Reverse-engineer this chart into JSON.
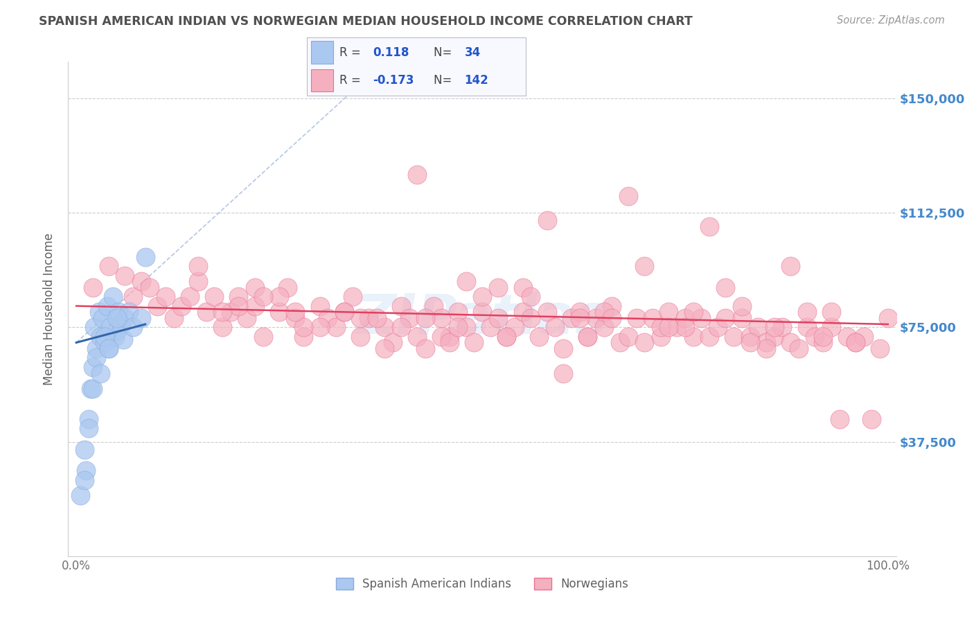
{
  "title": "SPANISH AMERICAN INDIAN VS NORWEGIAN MEDIAN HOUSEHOLD INCOME CORRELATION CHART",
  "source": "Source: ZipAtlas.com",
  "ylabel": "Median Household Income",
  "yticks": [
    0,
    37500,
    75000,
    112500,
    150000
  ],
  "ytick_labels": [
    "",
    "$37,500",
    "$75,000",
    "$112,500",
    "$150,000"
  ],
  "ymin": 0,
  "ymax": 162000,
  "xmin": -1,
  "xmax": 101,
  "blue_color": "#aac8f0",
  "pink_color": "#f5b0c0",
  "blue_edge": "#88aadd",
  "pink_edge": "#e87090",
  "trend_blue_color": "#3366aa",
  "trend_pink_color": "#e04060",
  "dashed_color": "#aac0e0",
  "watermark": "ZIPatlas",
  "background_color": "#ffffff",
  "title_color": "#505050",
  "axis_label_color": "#606060",
  "ytick_color": "#4488cc",
  "xtick_color": "#707070",
  "legend_box_color": "#ddddff",
  "blue_scatter_x": [
    0.5,
    1.0,
    1.2,
    1.5,
    1.8,
    2.0,
    2.2,
    2.5,
    2.8,
    3.0,
    3.2,
    3.5,
    3.8,
    4.0,
    4.2,
    4.5,
    4.8,
    5.0,
    5.2,
    5.5,
    5.8,
    6.0,
    6.5,
    7.0,
    8.0,
    1.0,
    1.5,
    2.0,
    2.5,
    3.0,
    3.5,
    4.0,
    5.0,
    8.5
  ],
  "blue_scatter_y": [
    20000,
    35000,
    28000,
    45000,
    55000,
    62000,
    75000,
    68000,
    80000,
    72000,
    78000,
    70000,
    82000,
    68000,
    75000,
    85000,
    72000,
    74000,
    80000,
    76000,
    71000,
    78000,
    80000,
    75000,
    78000,
    25000,
    42000,
    55000,
    65000,
    60000,
    72000,
    68000,
    78000,
    98000
  ],
  "pink_scatter_x": [
    2,
    4,
    6,
    7,
    8,
    9,
    10,
    11,
    12,
    13,
    14,
    15,
    16,
    17,
    18,
    19,
    20,
    21,
    22,
    23,
    25,
    26,
    27,
    28,
    30,
    31,
    32,
    33,
    34,
    35,
    36,
    38,
    39,
    40,
    41,
    42,
    43,
    44,
    45,
    46,
    47,
    48,
    49,
    50,
    51,
    52,
    53,
    54,
    55,
    56,
    57,
    58,
    59,
    60,
    61,
    62,
    63,
    64,
    65,
    66,
    67,
    68,
    69,
    70,
    71,
    72,
    73,
    74,
    75,
    76,
    77,
    78,
    79,
    80,
    81,
    82,
    83,
    84,
    85,
    86,
    87,
    88,
    89,
    90,
    91,
    92,
    93,
    94,
    95,
    96,
    97,
    98,
    99,
    100,
    15,
    22,
    35,
    48,
    58,
    68,
    78,
    88,
    25,
    42,
    55,
    65,
    75,
    85,
    20,
    30,
    50,
    60,
    70,
    80,
    90,
    40,
    45,
    38,
    52,
    62,
    72,
    82,
    92,
    18,
    28,
    46,
    56,
    66,
    76,
    86,
    96,
    33,
    43,
    63,
    73,
    83,
    93,
    23,
    53,
    47,
    37,
    27
  ],
  "pink_scatter_y": [
    88000,
    95000,
    92000,
    85000,
    90000,
    88000,
    82000,
    85000,
    78000,
    82000,
    85000,
    90000,
    80000,
    85000,
    75000,
    80000,
    85000,
    78000,
    82000,
    72000,
    80000,
    88000,
    78000,
    72000,
    82000,
    78000,
    75000,
    80000,
    85000,
    72000,
    78000,
    75000,
    70000,
    82000,
    78000,
    72000,
    68000,
    82000,
    78000,
    72000,
    80000,
    75000,
    70000,
    80000,
    75000,
    78000,
    72000,
    75000,
    80000,
    78000,
    72000,
    80000,
    75000,
    68000,
    78000,
    80000,
    72000,
    78000,
    75000,
    82000,
    70000,
    72000,
    78000,
    70000,
    78000,
    72000,
    80000,
    75000,
    78000,
    72000,
    78000,
    72000,
    75000,
    78000,
    72000,
    78000,
    72000,
    75000,
    70000,
    72000,
    75000,
    70000,
    68000,
    75000,
    72000,
    70000,
    75000,
    45000,
    72000,
    70000,
    72000,
    45000,
    68000,
    78000,
    95000,
    88000,
    78000,
    90000,
    110000,
    118000,
    108000,
    95000,
    85000,
    125000,
    88000,
    80000,
    75000,
    68000,
    82000,
    75000,
    85000,
    60000,
    95000,
    88000,
    80000,
    75000,
    72000,
    68000,
    88000,
    78000,
    75000,
    82000,
    72000,
    80000,
    75000,
    70000,
    85000,
    78000,
    80000,
    75000,
    70000,
    80000,
    78000,
    72000,
    75000,
    70000,
    80000,
    85000,
    72000,
    75000,
    78000,
    80000
  ]
}
